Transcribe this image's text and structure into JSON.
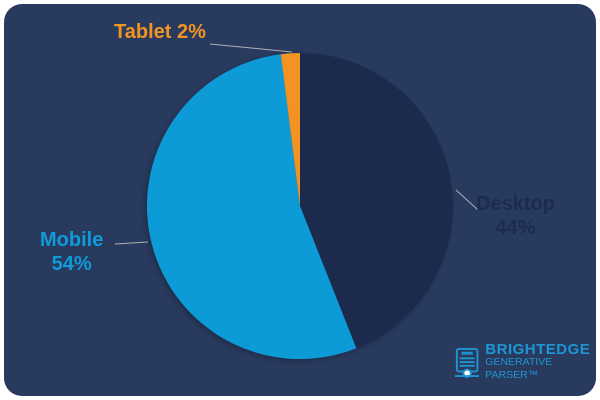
{
  "chart_data": {
    "type": "pie",
    "title": "",
    "slices": [
      {
        "label": "Desktop",
        "value": 44,
        "color": "#1b2c4e"
      },
      {
        "label": "Mobile",
        "value": 54,
        "color": "#0e9bd8"
      },
      {
        "label": "Tablet",
        "value": 2,
        "color": "#f39322"
      }
    ],
    "start_angle_deg": 0,
    "direction": "clockwise"
  },
  "labels": {
    "tablet": "Tablet 2%",
    "desktop_name": "Desktop",
    "desktop_pct": "44%",
    "mobile_name": "Mobile",
    "mobile_pct": "54%"
  },
  "brand": {
    "line1": "BRIGHTEDGE",
    "line2": "GENERATIVE PARSER™",
    "icon": "document-printer-icon"
  }
}
